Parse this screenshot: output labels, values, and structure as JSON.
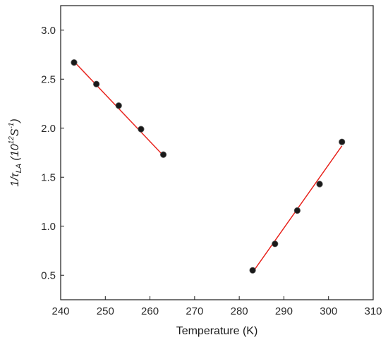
{
  "chart_data": {
    "type": "scatter",
    "xlabel": "Temperature (K)",
    "ylabel": {
      "prefix": "1/τ",
      "subscript": "LA",
      "unit_open": " (10",
      "unit_exp": "12",
      "unit_mid": "S",
      "unit_exp2": "-1",
      "unit_close": ")"
    },
    "xlim": [
      240,
      310
    ],
    "ylim": [
      0.25,
      3.25
    ],
    "x_ticks": [
      240,
      250,
      260,
      270,
      280,
      290,
      300,
      310
    ],
    "y_ticks": [
      0.5,
      1.0,
      1.5,
      2.0,
      2.5,
      3.0
    ],
    "y_tick_labels": [
      "0.5",
      "1.0",
      "1.5",
      "2.0",
      "2.5",
      "3.0"
    ],
    "grid": false,
    "series": [
      {
        "x": [
          243,
          248,
          253,
          258,
          263
        ],
        "y": [
          2.67,
          2.45,
          2.23,
          1.99,
          1.73
        ]
      },
      {
        "x": [
          283,
          288,
          293,
          298,
          303
        ],
        "y": [
          0.55,
          0.82,
          1.16,
          1.43,
          1.86
        ]
      }
    ],
    "fits": [
      {
        "x": [
          243,
          263
        ],
        "y": [
          2.68,
          1.72
        ]
      },
      {
        "x": [
          283,
          303
        ],
        "y": [
          0.53,
          1.82
        ]
      }
    ],
    "colors": {
      "points": "#1a1a1a",
      "fit_line": "#e8251f",
      "axes": "#1a1a1a"
    }
  }
}
